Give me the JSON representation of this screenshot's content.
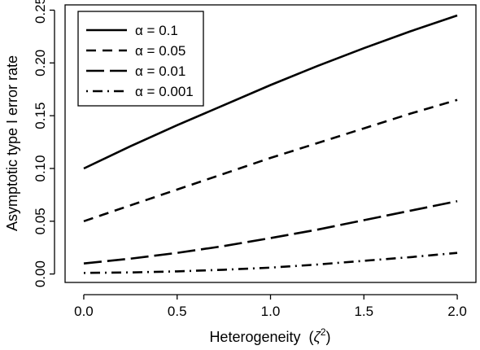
{
  "chart_data": {
    "type": "line",
    "xlabel": "Heterogeneity",
    "xlabel_symbol": "ζ",
    "xlabel_superscript": "2",
    "ylabel": "Asymptotic type I error rate",
    "xlim": [
      -0.1,
      2.1
    ],
    "ylim": [
      -0.008,
      0.255
    ],
    "xticks": [
      0.0,
      0.5,
      1.0,
      1.5,
      2.0
    ],
    "xtick_labels": [
      "0.0",
      "0.5",
      "1.0",
      "1.5",
      "2.0"
    ],
    "yticks": [
      0.0,
      0.05,
      0.1,
      0.15,
      0.2,
      0.25
    ],
    "ytick_labels": [
      "0.00",
      "0.05",
      "0.10",
      "0.15",
      "0.20",
      "0.25"
    ],
    "grid": false,
    "legend_position": "top-left",
    "x": [
      0.0,
      0.25,
      0.5,
      0.75,
      1.0,
      1.25,
      1.5,
      1.75,
      2.0
    ],
    "series": [
      {
        "name": "α = 0.1",
        "color": "#000000",
        "dash": "solid",
        "values": [
          0.1,
          0.121,
          0.141,
          0.16,
          0.179,
          0.197,
          0.214,
          0.23,
          0.245
        ]
      },
      {
        "name": "α = 0.05",
        "color": "#000000",
        "dash": "dashed",
        "values": [
          0.05,
          0.065,
          0.08,
          0.095,
          0.11,
          0.124,
          0.138,
          0.152,
          0.165
        ]
      },
      {
        "name": "α = 0.01",
        "color": "#000000",
        "dash": "longdash",
        "values": [
          0.01,
          0.0145,
          0.02,
          0.0265,
          0.034,
          0.042,
          0.051,
          0.06,
          0.069
        ]
      },
      {
        "name": "α = 0.001",
        "color": "#000000",
        "dash": "dotdash",
        "values": [
          0.001,
          0.0015,
          0.0025,
          0.004,
          0.006,
          0.009,
          0.0125,
          0.016,
          0.02
        ]
      }
    ]
  }
}
